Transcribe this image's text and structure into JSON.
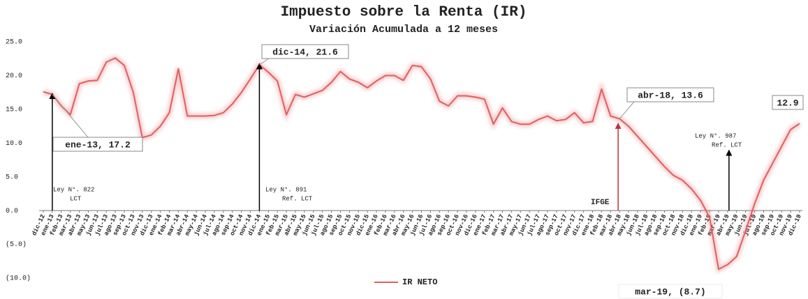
{
  "chart_data": {
    "type": "line",
    "title": "Impuesto sobre la Renta (IR)",
    "subtitle": "Variación Acumulada a 12 meses",
    "categories": [
      "dic-12",
      "ene-13",
      "feb-13",
      "mar-13",
      "abr-13",
      "may-13",
      "jun-13",
      "jul-13",
      "ago-13",
      "sep-13",
      "oct-13",
      "nov-13",
      "dic-13",
      "ene-14",
      "feb-14",
      "mar-14",
      "abr-14",
      "may-14",
      "jun-14",
      "jul-14",
      "ago-14",
      "sep-14",
      "oct-14",
      "nov-14",
      "dic-14",
      "ene-15",
      "feb-15",
      "mar-15",
      "abr-15",
      "may-15",
      "jun-15",
      "jul-15",
      "ago-15",
      "sep-15",
      "oct-15",
      "nov-15",
      "dic-15",
      "ene-16",
      "feb-16",
      "mar-16",
      "abr-16",
      "may-16",
      "jun-16",
      "jul-16",
      "ago-16",
      "sep-16",
      "oct-16",
      "nov-16",
      "dic-16",
      "ene-17",
      "feb-17",
      "mar-17",
      "abr-17",
      "may-17",
      "jun-17",
      "jul-17",
      "ago-17",
      "sep-17",
      "oct-17",
      "nov-17",
      "dic-17",
      "ene-18",
      "feb-18",
      "mar-18",
      "abr-18",
      "may-18",
      "jun-18",
      "jul-18",
      "ago-18",
      "sep-18",
      "oct-18",
      "nov-18",
      "dic-18",
      "ene-19",
      "feb-19",
      "mar-19",
      "abr-19",
      "may-19",
      "jun-19",
      "jul-19",
      "ago-19",
      "sep-19",
      "oct-19",
      "nov-19",
      "dic-19"
    ],
    "series": [
      {
        "name": "IR NETO",
        "color": "#e06060",
        "values": [
          17.6,
          17.2,
          15.5,
          14.2,
          18.8,
          19.2,
          19.3,
          22.0,
          22.6,
          21.5,
          17.5,
          10.8,
          11.2,
          12.5,
          14.5,
          21.0,
          14.0,
          14.0,
          14.0,
          14.1,
          14.5,
          15.8,
          17.5,
          19.5,
          21.6,
          20.5,
          19.2,
          14.2,
          17.2,
          16.8,
          17.3,
          17.8,
          19.0,
          20.6,
          19.5,
          19.0,
          18.2,
          19.2,
          20.0,
          20.0,
          19.3,
          21.5,
          21.3,
          19.5,
          16.2,
          15.5,
          17.0,
          17.0,
          16.8,
          16.5,
          12.8,
          15.2,
          13.2,
          12.8,
          12.8,
          13.5,
          14.0,
          13.3,
          13.5,
          14.5,
          13.0,
          13.2,
          18.0,
          14.0,
          13.6,
          12.5,
          11.0,
          9.5,
          8.0,
          6.5,
          5.2,
          4.5,
          3.2,
          1.5,
          -1.0,
          -8.7,
          -8.0,
          -6.8,
          -3.0,
          1.0,
          4.5,
          7.0,
          9.5,
          12.0,
          12.9
        ]
      }
    ],
    "ylim": [
      -10,
      25
    ],
    "yticks": [
      {
        "value": -10,
        "label": "(10.0)"
      },
      {
        "value": -5,
        "label": "(5.0)"
      },
      {
        "value": 0,
        "label": "0.0"
      },
      {
        "value": 5,
        "label": "5.0"
      },
      {
        "value": 10,
        "label": "10.0"
      },
      {
        "value": 15,
        "label": "15.0"
      },
      {
        "value": 20,
        "label": "20.0"
      },
      {
        "value": 25,
        "label": "25.0"
      }
    ],
    "annotations": [
      "ene-13,  17.2",
      "dic-14,  21.6",
      "abr-18,  13.6",
      "12.9",
      "mar-19, (8.7)"
    ],
    "events": [
      {
        "lines": [
          "Ley N°. 822",
          "LCT"
        ]
      },
      {
        "lines": [
          "Ley N°. 891",
          "Ref. LCT"
        ]
      },
      {
        "lines": [
          "IFGE"
        ]
      },
      {
        "lines": [
          "Ley N°. 987",
          "Ref. LCT"
        ]
      }
    ],
    "grid": false,
    "legend": "bottom"
  }
}
